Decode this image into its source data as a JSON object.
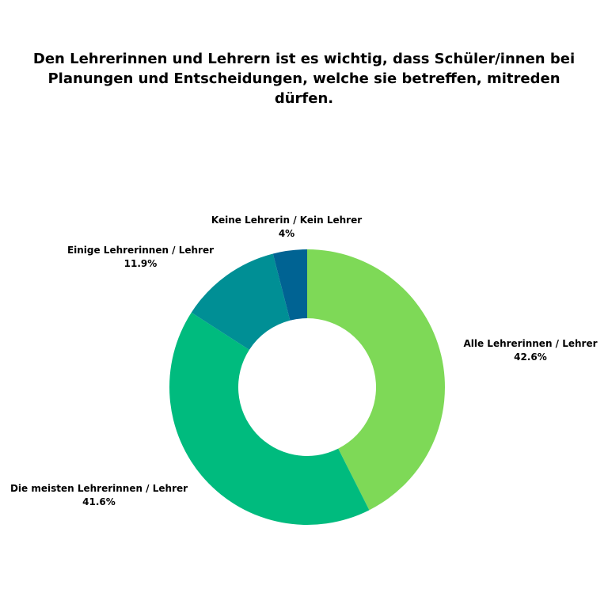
{
  "chart_data": {
    "type": "pie",
    "title": "Den Lehrerinnen und Lehrern ist es wichtig, dass Schüler/innen bei Planungen und Entscheidungen, welche sie betreffen, mitreden dürfen.",
    "legend": "none",
    "slices": [
      {
        "label": "Alle Lehrerinnen / Lehrer",
        "value": 42.6,
        "value_label": "42.6%",
        "color": "#7ed957"
      },
      {
        "label": "Die meisten Lehrerinnen / Lehrer",
        "value": 41.6,
        "value_label": "41.6%",
        "color": "#00bb7e"
      },
      {
        "label": "Einige Lehrerinnen / Lehrer",
        "value": 11.9,
        "value_label": "11.9%",
        "color": "#008f95"
      },
      {
        "label": "Keine Lehrerin / Kein Lehrer",
        "value": 4,
        "value_label": "4%",
        "color": "#006393"
      }
    ]
  }
}
